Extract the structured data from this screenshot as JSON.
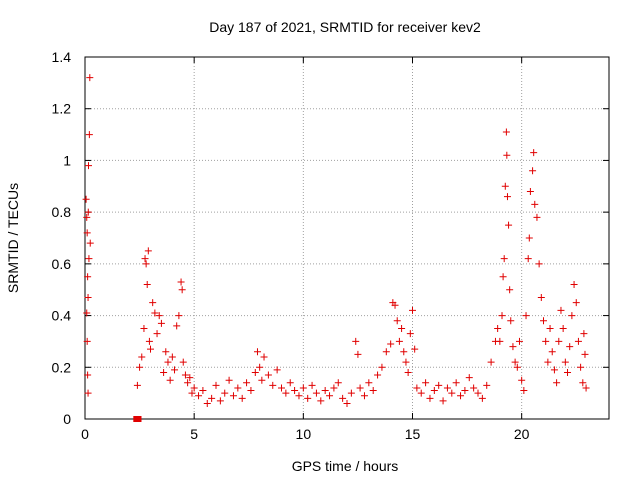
{
  "chart_data": {
    "type": "scatter",
    "title": "Day 187 of 2021, SRMTID for receiver kev2",
    "xlabel": "GPS time / hours",
    "ylabel": "SRMTID / TECUs",
    "xlim": [
      0,
      24
    ],
    "ylim": [
      0,
      1.4
    ],
    "xticks": [
      0,
      5,
      10,
      15,
      20
    ],
    "xtick_labels": [
      "0",
      "5",
      "10",
      "15",
      "20"
    ],
    "yticks": [
      0,
      0.2,
      0.4,
      0.6,
      0.8,
      1.0,
      1.2,
      1.4
    ],
    "ytick_labels": [
      "0",
      "0.2",
      "0.4",
      "0.6",
      "0.8",
      "1",
      "1.2",
      "1.4"
    ],
    "grid": true,
    "marker": "plus",
    "color": "#e00000",
    "series": [
      {
        "name": "SRMTID",
        "points": [
          [
            0.05,
            0.85
          ],
          [
            0.08,
            0.78
          ],
          [
            0.1,
            0.72
          ],
          [
            0.12,
            0.55
          ],
          [
            0.14,
            0.47
          ],
          [
            0.15,
            0.8
          ],
          [
            0.16,
            0.98
          ],
          [
            0.18,
            0.62
          ],
          [
            0.2,
            1.1
          ],
          [
            0.22,
            1.32
          ],
          [
            0.24,
            0.68
          ],
          [
            0.1,
            0.3
          ],
          [
            0.12,
            0.17
          ],
          [
            0.14,
            0.1
          ],
          [
            0.08,
            0.41
          ],
          [
            2.4,
            0.13
          ],
          [
            2.5,
            0.2
          ],
          [
            2.6,
            0.24
          ],
          [
            2.7,
            0.35
          ],
          [
            2.75,
            0.62
          ],
          [
            2.8,
            0.6
          ],
          [
            2.85,
            0.52
          ],
          [
            2.9,
            0.65
          ],
          [
            2.95,
            0.3
          ],
          [
            3.0,
            0.27
          ],
          [
            3.1,
            0.45
          ],
          [
            3.2,
            0.41
          ],
          [
            3.3,
            0.33
          ],
          [
            3.4,
            0.4
          ],
          [
            3.5,
            0.37
          ],
          [
            3.6,
            0.18
          ],
          [
            3.7,
            0.26
          ],
          [
            3.8,
            0.22
          ],
          [
            3.9,
            0.15
          ],
          [
            4.0,
            0.24
          ],
          [
            4.1,
            0.19
          ],
          [
            4.2,
            0.36
          ],
          [
            4.3,
            0.4
          ],
          [
            4.4,
            0.53
          ],
          [
            4.45,
            0.5
          ],
          [
            4.5,
            0.22
          ],
          [
            4.6,
            0.17
          ],
          [
            4.7,
            0.14
          ],
          [
            4.8,
            0.16
          ],
          [
            4.9,
            0.1
          ],
          [
            5.0,
            0.12
          ],
          [
            5.2,
            0.09
          ],
          [
            5.4,
            0.11
          ],
          [
            5.6,
            0.06
          ],
          [
            5.8,
            0.08
          ],
          [
            6.0,
            0.13
          ],
          [
            6.2,
            0.07
          ],
          [
            6.4,
            0.1
          ],
          [
            6.6,
            0.15
          ],
          [
            6.8,
            0.09
          ],
          [
            7.0,
            0.12
          ],
          [
            7.2,
            0.08
          ],
          [
            7.4,
            0.14
          ],
          [
            7.6,
            0.11
          ],
          [
            7.8,
            0.18
          ],
          [
            7.9,
            0.26
          ],
          [
            8.0,
            0.2
          ],
          [
            8.1,
            0.15
          ],
          [
            8.2,
            0.24
          ],
          [
            8.4,
            0.17
          ],
          [
            8.6,
            0.13
          ],
          [
            8.8,
            0.19
          ],
          [
            9.0,
            0.12
          ],
          [
            9.2,
            0.1
          ],
          [
            9.4,
            0.14
          ],
          [
            9.6,
            0.11
          ],
          [
            9.8,
            0.09
          ],
          [
            10.0,
            0.12
          ],
          [
            10.2,
            0.08
          ],
          [
            10.4,
            0.13
          ],
          [
            10.6,
            0.1
          ],
          [
            10.8,
            0.07
          ],
          [
            11.0,
            0.11
          ],
          [
            11.2,
            0.09
          ],
          [
            11.4,
            0.12
          ],
          [
            11.6,
            0.14
          ],
          [
            11.8,
            0.08
          ],
          [
            12.0,
            0.06
          ],
          [
            12.2,
            0.1
          ],
          [
            12.4,
            0.3
          ],
          [
            12.5,
            0.25
          ],
          [
            12.6,
            0.12
          ],
          [
            12.8,
            0.09
          ],
          [
            13.0,
            0.14
          ],
          [
            13.2,
            0.11
          ],
          [
            13.4,
            0.17
          ],
          [
            13.6,
            0.2
          ],
          [
            13.8,
            0.26
          ],
          [
            14.0,
            0.29
          ],
          [
            14.1,
            0.45
          ],
          [
            14.2,
            0.44
          ],
          [
            14.3,
            0.38
          ],
          [
            14.4,
            0.3
          ],
          [
            14.5,
            0.35
          ],
          [
            14.6,
            0.26
          ],
          [
            14.7,
            0.22
          ],
          [
            14.8,
            0.18
          ],
          [
            14.9,
            0.33
          ],
          [
            15.0,
            0.42
          ],
          [
            15.1,
            0.27
          ],
          [
            15.2,
            0.12
          ],
          [
            15.4,
            0.1
          ],
          [
            15.6,
            0.14
          ],
          [
            15.8,
            0.08
          ],
          [
            16.0,
            0.11
          ],
          [
            16.2,
            0.13
          ],
          [
            16.4,
            0.07
          ],
          [
            16.6,
            0.12
          ],
          [
            16.8,
            0.1
          ],
          [
            17.0,
            0.14
          ],
          [
            17.2,
            0.09
          ],
          [
            17.4,
            0.11
          ],
          [
            17.6,
            0.16
          ],
          [
            17.8,
            0.12
          ],
          [
            18.0,
            0.1
          ],
          [
            18.2,
            0.08
          ],
          [
            18.4,
            0.13
          ],
          [
            18.6,
            0.22
          ],
          [
            18.8,
            0.3
          ],
          [
            18.9,
            0.35
          ],
          [
            19.0,
            0.3
          ],
          [
            19.1,
            0.4
          ],
          [
            19.15,
            0.55
          ],
          [
            19.2,
            0.62
          ],
          [
            19.25,
            0.9
          ],
          [
            19.3,
            1.11
          ],
          [
            19.32,
            1.02
          ],
          [
            19.35,
            0.86
          ],
          [
            19.4,
            0.75
          ],
          [
            19.45,
            0.5
          ],
          [
            19.5,
            0.38
          ],
          [
            19.6,
            0.28
          ],
          [
            19.7,
            0.22
          ],
          [
            19.8,
            0.2
          ],
          [
            19.9,
            0.3
          ],
          [
            20.0,
            0.15
          ],
          [
            20.1,
            0.11
          ],
          [
            20.2,
            0.4
          ],
          [
            20.3,
            0.62
          ],
          [
            20.35,
            0.7
          ],
          [
            20.4,
            0.88
          ],
          [
            20.5,
            0.96
          ],
          [
            20.55,
            1.03
          ],
          [
            20.6,
            0.83
          ],
          [
            20.7,
            0.78
          ],
          [
            20.8,
            0.6
          ],
          [
            20.9,
            0.47
          ],
          [
            21.0,
            0.38
          ],
          [
            21.1,
            0.3
          ],
          [
            21.2,
            0.22
          ],
          [
            21.3,
            0.35
          ],
          [
            21.4,
            0.26
          ],
          [
            21.5,
            0.19
          ],
          [
            21.6,
            0.14
          ],
          [
            21.7,
            0.3
          ],
          [
            21.8,
            0.42
          ],
          [
            21.9,
            0.35
          ],
          [
            22.0,
            0.22
          ],
          [
            22.1,
            0.18
          ],
          [
            22.2,
            0.28
          ],
          [
            22.3,
            0.4
          ],
          [
            22.4,
            0.52
          ],
          [
            22.5,
            0.45
          ],
          [
            22.6,
            0.3
          ],
          [
            22.7,
            0.2
          ],
          [
            22.8,
            0.14
          ],
          [
            22.85,
            0.33
          ],
          [
            22.9,
            0.25
          ],
          [
            22.95,
            0.12
          ]
        ]
      }
    ],
    "gap_markers": [
      [
        2.35,
        0.0
      ],
      [
        2.45,
        0.0
      ]
    ]
  }
}
